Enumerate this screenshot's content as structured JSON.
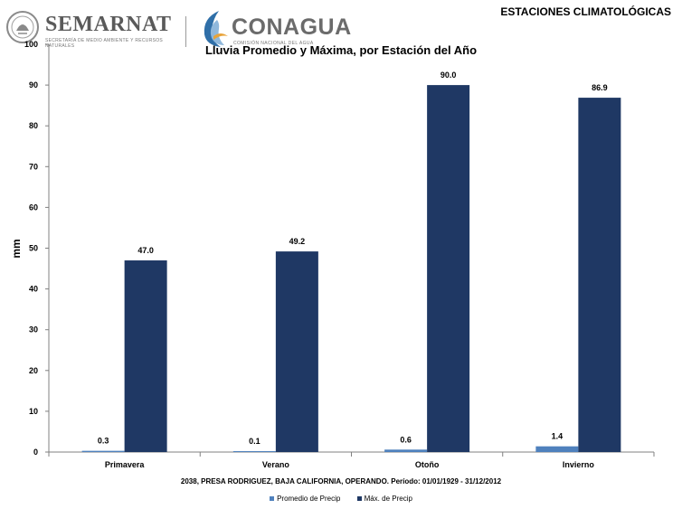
{
  "header": {
    "semarnat": {
      "name": "SEMARNAT",
      "subtitle": "SECRETARÍA DE MEDIO AMBIENTE Y RECURSOS NATURALES"
    },
    "conagua": {
      "name": "CONAGUA",
      "subtitle": "COMISIÓN NACIONAL DEL AGUA"
    },
    "section_title": "ESTACIONES CLIMATOLÓGICAS"
  },
  "colors": {
    "promedio": "#4f81bd",
    "maxima": "#1f3864",
    "grid": "#bfbfbf"
  },
  "chart_data": {
    "type": "bar",
    "title": "Lluvia Promedio y Máxima, por Estación del Año",
    "subtitle": "2038, PRESA RODRIGUEZ, BAJA CALIFORNIA, OPERANDO. Período: 01/01/1929 - 31/12/2012",
    "xlabel": "",
    "ylabel": "mm",
    "ylim": [
      0,
      100
    ],
    "yticks": [
      "0",
      "10",
      "20",
      "30",
      "40",
      "50",
      "60",
      "70",
      "80",
      "90",
      "100"
    ],
    "categories": [
      "Primavera",
      "Verano",
      "Otoño",
      "Invierno"
    ],
    "series": [
      {
        "name": "Promedio de Precip",
        "values": [
          0.3,
          0.1,
          0.6,
          1.4
        ],
        "labels": [
          "0.3",
          "0.1",
          "0.6",
          "1.4"
        ]
      },
      {
        "name": "Máx. de Precip",
        "values": [
          47.0,
          49.2,
          90.0,
          86.9
        ],
        "labels": [
          "47.0",
          "49.2",
          "90.0",
          "86.9"
        ]
      }
    ],
    "grid": false,
    "legend": "bottom"
  }
}
